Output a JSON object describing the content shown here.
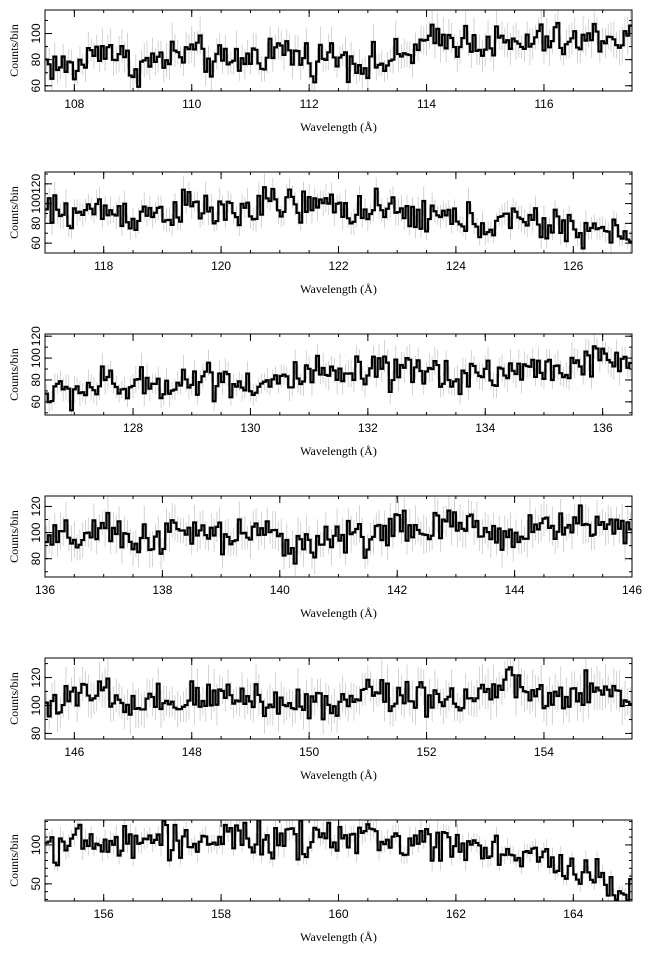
{
  "chart_data": [
    {
      "type": "line",
      "xlabel": "Wavelength (Å)",
      "ylabel": "Counts/bin",
      "xlim": [
        107.5,
        117.5
      ],
      "ylim": [
        56,
        118
      ],
      "xticks": [
        108,
        110,
        112,
        114,
        116
      ],
      "yticks": [
        60,
        80,
        100
      ],
      "grid": false,
      "x": [
        107.5,
        108.0,
        108.5,
        109.0,
        109.5,
        110.0,
        110.5,
        111.0,
        111.5,
        112.0,
        112.5,
        113.0,
        113.5,
        114.0,
        114.5,
        115.0,
        115.5,
        116.0,
        116.5,
        117.0,
        117.5
      ],
      "y": [
        78,
        72,
        92,
        74,
        80,
        86,
        76,
        82,
        88,
        80,
        84,
        76,
        80,
        92,
        96,
        94,
        90,
        96,
        92,
        98,
        96
      ]
    },
    {
      "type": "line",
      "xlabel": "Wavelength (Å)",
      "ylabel": "Counts/bin",
      "xlim": [
        117,
        127
      ],
      "ylim": [
        50,
        132
      ],
      "xticks": [
        118,
        120,
        122,
        124,
        126
      ],
      "yticks": [
        60,
        80,
        100,
        120
      ],
      "grid": false,
      "x": [
        117.0,
        117.5,
        118.0,
        118.5,
        119.0,
        119.5,
        120.0,
        120.5,
        121.0,
        121.5,
        122.0,
        122.5,
        123.0,
        123.5,
        124.0,
        124.5,
        125.0,
        125.5,
        126.0,
        126.5,
        127.0
      ],
      "y": [
        92,
        90,
        94,
        88,
        92,
        96,
        90,
        94,
        100,
        96,
        98,
        92,
        90,
        88,
        84,
        80,
        82,
        78,
        76,
        72,
        66
      ]
    },
    {
      "type": "line",
      "xlabel": "Wavelength (Å)",
      "ylabel": "Counts/bin",
      "xlim": [
        126.5,
        136.5
      ],
      "ylim": [
        48,
        122
      ],
      "xticks": [
        128,
        130,
        132,
        134,
        136
      ],
      "yticks": [
        60,
        80,
        100,
        120
      ],
      "grid": false,
      "x": [
        126.5,
        127.0,
        127.5,
        128.0,
        128.5,
        129.0,
        129.5,
        130.0,
        130.5,
        131.0,
        131.5,
        132.0,
        132.5,
        133.0,
        133.5,
        134.0,
        134.5,
        135.0,
        135.5,
        136.0,
        136.5
      ],
      "y": [
        66,
        70,
        76,
        72,
        78,
        80,
        82,
        76,
        78,
        84,
        82,
        86,
        84,
        88,
        84,
        86,
        88,
        90,
        94,
        96,
        100
      ]
    },
    {
      "type": "line",
      "xlabel": "Wavelength (Å)",
      "ylabel": "Counts/bin",
      "xlim": [
        136,
        146
      ],
      "ylim": [
        66,
        128
      ],
      "xticks": [
        136,
        138,
        140,
        142,
        144,
        146
      ],
      "yticks": [
        80,
        100,
        120
      ],
      "grid": false,
      "x": [
        136.0,
        136.5,
        137.0,
        137.5,
        138.0,
        138.5,
        139.0,
        139.5,
        140.0,
        140.5,
        141.0,
        141.5,
        142.0,
        142.5,
        143.0,
        143.5,
        144.0,
        144.5,
        145.0,
        145.5,
        146.0
      ],
      "y": [
        92,
        96,
        100,
        94,
        98,
        100,
        96,
        100,
        94,
        92,
        96,
        98,
        104,
        100,
        106,
        102,
        98,
        104,
        108,
        104,
        106
      ]
    },
    {
      "type": "line",
      "xlabel": "Wavelength (Å)",
      "ylabel": "Counts/bin",
      "xlim": [
        145.5,
        155.5
      ],
      "ylim": [
        76,
        134
      ],
      "xticks": [
        146,
        148,
        150,
        152,
        154
      ],
      "yticks": [
        80,
        100,
        120
      ],
      "grid": false,
      "x": [
        145.5,
        146.0,
        146.5,
        147.0,
        147.5,
        148.0,
        148.5,
        149.0,
        149.5,
        150.0,
        150.5,
        151.0,
        151.5,
        152.0,
        152.5,
        153.0,
        153.5,
        154.0,
        154.5,
        155.0,
        155.5
      ],
      "y": [
        102,
        104,
        110,
        96,
        100,
        104,
        106,
        108,
        100,
        104,
        100,
        112,
        106,
        108,
        104,
        110,
        114,
        104,
        106,
        110,
        104
      ]
    },
    {
      "type": "line",
      "xlabel": "Wavelength (Å)",
      "ylabel": "Counts/bin",
      "xlim": [
        155,
        165
      ],
      "ylim": [
        28,
        132
      ],
      "xticks": [
        156,
        158,
        160,
        162,
        164
      ],
      "yticks": [
        50,
        100
      ],
      "grid": false,
      "x": [
        155.0,
        155.5,
        156.0,
        156.5,
        157.0,
        157.5,
        158.0,
        158.5,
        159.0,
        159.5,
        160.0,
        160.5,
        161.0,
        161.5,
        162.0,
        162.5,
        163.0,
        163.5,
        164.0,
        164.5,
        165.0
      ],
      "y": [
        104,
        102,
        100,
        102,
        108,
        104,
        110,
        106,
        104,
        102,
        112,
        108,
        104,
        106,
        102,
        100,
        88,
        78,
        70,
        56,
        38
      ]
    }
  ]
}
